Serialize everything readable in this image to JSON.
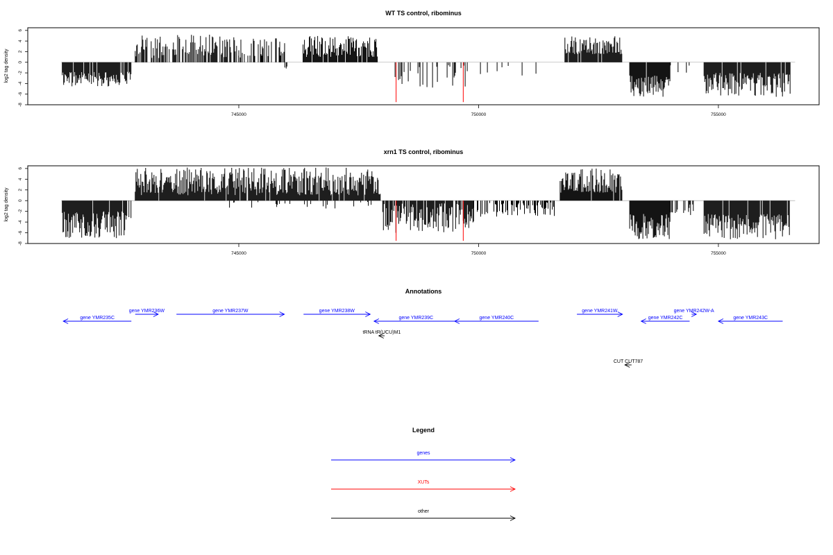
{
  "colors": {
    "gene": "#0000ff",
    "xut": "#ff0000",
    "other": "#000000",
    "axis": "#000000"
  },
  "chart_data": [
    {
      "type": "bar",
      "title": "WT TS control, ribominus",
      "xlabel": "",
      "ylabel": "log2 tag density",
      "xlim": [
        740600,
        757100
      ],
      "ylim": [
        -8,
        6.5
      ],
      "xticks": [
        745000,
        750000,
        755000
      ],
      "xtick_labels": [
        "745000",
        "750000",
        "755000"
      ],
      "yticks": [
        -8,
        -6,
        -4,
        -2,
        0,
        2,
        4,
        6
      ],
      "ytick_labels": [
        "-8",
        "-6",
        "-4",
        "-2",
        "0",
        "2",
        "4",
        "6"
      ],
      "grid": false,
      "baseline": {
        "x": [
          741300,
          756600
        ],
        "y": 0
      },
      "segments": [
        {
          "x": [
            741320,
            742760
          ],
          "sign": -1,
          "min": 1.8,
          "max": 4.8,
          "density": 0.95,
          "seed": 11
        },
        {
          "x": [
            742840,
            745000
          ],
          "sign": 1,
          "min": 0.8,
          "max": 5.2,
          "density": 0.55,
          "seed": 12
        },
        {
          "x": [
            745000,
            745960
          ],
          "sign": 1,
          "min": 0.8,
          "max": 4.5,
          "density": 0.5,
          "seed": 13
        },
        {
          "x": [
            745960,
            746060
          ],
          "sign": -1,
          "min": 0.5,
          "max": 1.5,
          "density": 0.3,
          "seed": 14
        },
        {
          "x": [
            746340,
            747900
          ],
          "sign": 1,
          "min": 1.0,
          "max": 5.0,
          "density": 0.9,
          "seed": 15
        },
        {
          "x": [
            748200,
            749800
          ],
          "sign": -1,
          "min": 0.3,
          "max": 5.0,
          "density": 0.22,
          "seed": 16
        },
        {
          "x": [
            749850,
            751200
          ],
          "sign": -1,
          "min": 0.3,
          "max": 2.5,
          "density": 0.08,
          "seed": 17
        },
        {
          "x": [
            751800,
            753000
          ],
          "sign": 1,
          "min": 1.5,
          "max": 5.0,
          "density": 0.95,
          "seed": 18
        },
        {
          "x": [
            753150,
            754000
          ],
          "sign": -1,
          "min": 2.5,
          "max": 6.5,
          "density": 0.95,
          "seed": 19
        },
        {
          "x": [
            754000,
            754400
          ],
          "sign": -1,
          "min": 0.5,
          "max": 2.0,
          "density": 0.25,
          "seed": 20
        },
        {
          "x": [
            754700,
            756500
          ],
          "sign": -1,
          "min": 2.0,
          "max": 6.5,
          "density": 0.95,
          "seed": 21
        }
      ],
      "highlights": [
        {
          "x": 748280,
          "y": -7.5,
          "color": "#ff0000"
        },
        {
          "x": 749680,
          "y": -7.5,
          "color": "#ff0000"
        }
      ]
    },
    {
      "type": "bar",
      "title": "xrn1 TS control, ribominus",
      "xlabel": "",
      "ylabel": "log2 tag density",
      "xlim": [
        740600,
        757100
      ],
      "ylim": [
        -8,
        6.5
      ],
      "xticks": [
        745000,
        750000,
        755000
      ],
      "xtick_labels": [
        "745000",
        "750000",
        "755000"
      ],
      "yticks": [
        -8,
        -6,
        -4,
        -2,
        0,
        2,
        4,
        6
      ],
      "ytick_labels": [
        "-8",
        "-6",
        "-4",
        "-2",
        "0",
        "2",
        "4",
        "6"
      ],
      "grid": false,
      "baseline": {
        "x": [
          741300,
          756600
        ],
        "y": 0
      },
      "segments": [
        {
          "x": [
            741320,
            742760
          ],
          "sign": -1,
          "min": 2.0,
          "max": 7.0,
          "density": 0.95,
          "seed": 31
        },
        {
          "x": [
            742840,
            747960
          ],
          "sign": 1,
          "min": 1.0,
          "max": 6.2,
          "density": 0.95,
          "seed": 32
        },
        {
          "x": [
            744300,
            747900
          ],
          "sign": -1,
          "min": 0.2,
          "max": 1.5,
          "density": 0.08,
          "seed": 33
        },
        {
          "x": [
            748000,
            749900
          ],
          "sign": -1,
          "min": 0.5,
          "max": 6.0,
          "density": 0.8,
          "seed": 34
        },
        {
          "x": [
            749900,
            751600
          ],
          "sign": -1,
          "min": 0.3,
          "max": 3.0,
          "density": 0.55,
          "seed": 35
        },
        {
          "x": [
            751700,
            753000
          ],
          "sign": 1,
          "min": 1.5,
          "max": 6.0,
          "density": 0.95,
          "seed": 36
        },
        {
          "x": [
            753150,
            754000
          ],
          "sign": -1,
          "min": 2.5,
          "max": 7.2,
          "density": 0.95,
          "seed": 37
        },
        {
          "x": [
            754000,
            754500
          ],
          "sign": -1,
          "min": 0.5,
          "max": 3.0,
          "density": 0.3,
          "seed": 38
        },
        {
          "x": [
            754700,
            756500
          ],
          "sign": -1,
          "min": 2.5,
          "max": 7.2,
          "density": 0.95,
          "seed": 39
        }
      ],
      "highlights": [
        {
          "x": 748280,
          "y": -7.5,
          "color": "#ff0000"
        },
        {
          "x": 749680,
          "y": -7.5,
          "color": "#ff0000"
        }
      ]
    }
  ],
  "annotations": {
    "title": "Annotations",
    "xlim": [
      740600,
      757100
    ],
    "features": [
      {
        "label": "gene YMR235C",
        "start": 742760,
        "end": 741340,
        "row": 1,
        "color": "#0000ff"
      },
      {
        "label": "gene YMR236W",
        "start": 742840,
        "end": 743320,
        "row": 0,
        "color": "#0000ff"
      },
      {
        "label": "gene YMR237W",
        "start": 743700,
        "end": 745950,
        "row": 0,
        "color": "#0000ff"
      },
      {
        "label": "gene YMR238W",
        "start": 746350,
        "end": 747740,
        "row": 0,
        "color": "#0000ff"
      },
      {
        "label": "gene YMR239C",
        "start": 749570,
        "end": 747820,
        "row": 1,
        "color": "#0000ff"
      },
      {
        "label": "gene YMR240C",
        "start": 751250,
        "end": 749500,
        "row": 1,
        "color": "#0000ff"
      },
      {
        "label": "gene YMR241W",
        "start": 752050,
        "end": 753000,
        "row": 0,
        "color": "#0000ff"
      },
      {
        "label": "gene YMR242C",
        "start": 754400,
        "end": 753390,
        "row": 1,
        "color": "#0000ff"
      },
      {
        "label": "gene YMR242W-A",
        "start": 754440,
        "end": 754540,
        "row": 0,
        "color": "#0000ff"
      },
      {
        "label": "gene YMR243C",
        "start": 756340,
        "end": 755000,
        "row": 1,
        "color": "#0000ff"
      },
      {
        "label": "tRNA tR(UCU)M1",
        "start": 748040,
        "end": 747920,
        "row": 2,
        "color": "#000000"
      },
      {
        "label": "CUT CUT787",
        "start": 753190,
        "end": 753050,
        "row": 3,
        "color": "#000000"
      }
    ]
  },
  "legend": {
    "title": "Legend",
    "items": [
      {
        "label": "genes",
        "color": "#0000ff"
      },
      {
        "label": "XUTs",
        "color": "#ff0000"
      },
      {
        "label": "other",
        "color": "#000000"
      }
    ]
  }
}
